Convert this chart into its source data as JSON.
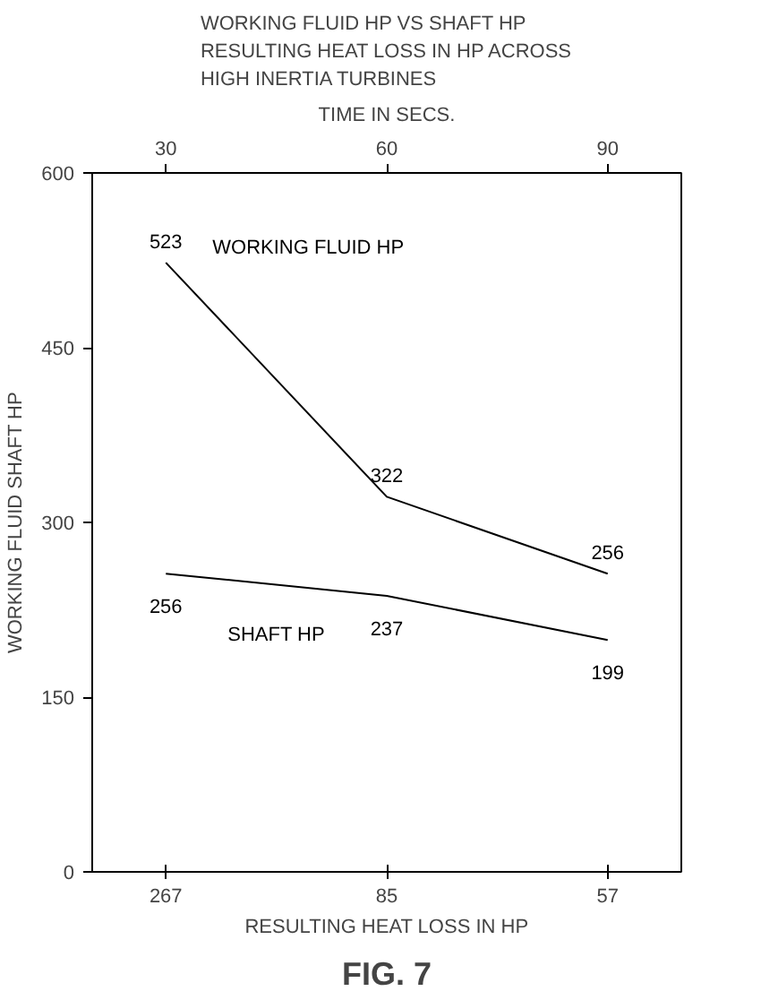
{
  "chart_data": {
    "type": "line",
    "title": "WORKING FLUID HP VS SHAFT HP\nRESULTING HEAT LOSS IN HP ACROSS\nHIGH INERTIA TURBINES",
    "x2label": "TIME IN SECS.",
    "xlabel": "RESULTING HEAT LOSS IN HP",
    "ylabel": "WORKING FLUID SHAFT HP",
    "categories": [
      "267",
      "85",
      "57"
    ],
    "x2lim": [
      20,
      100
    ],
    "x2ticks": [
      30,
      60,
      90
    ],
    "ylim": [
      0,
      600
    ],
    "yticks": [
      0,
      150,
      300,
      450,
      600
    ],
    "series": [
      {
        "name": "WORKING FLUID HP",
        "color": "#000000",
        "values": [
          523,
          322,
          256
        ]
      },
      {
        "name": "SHAFT HP",
        "color": "#000000",
        "values": [
          256,
          237,
          199
        ]
      }
    ],
    "data_labels": true,
    "grid": false,
    "annotations": [
      "FIG. 7"
    ]
  }
}
